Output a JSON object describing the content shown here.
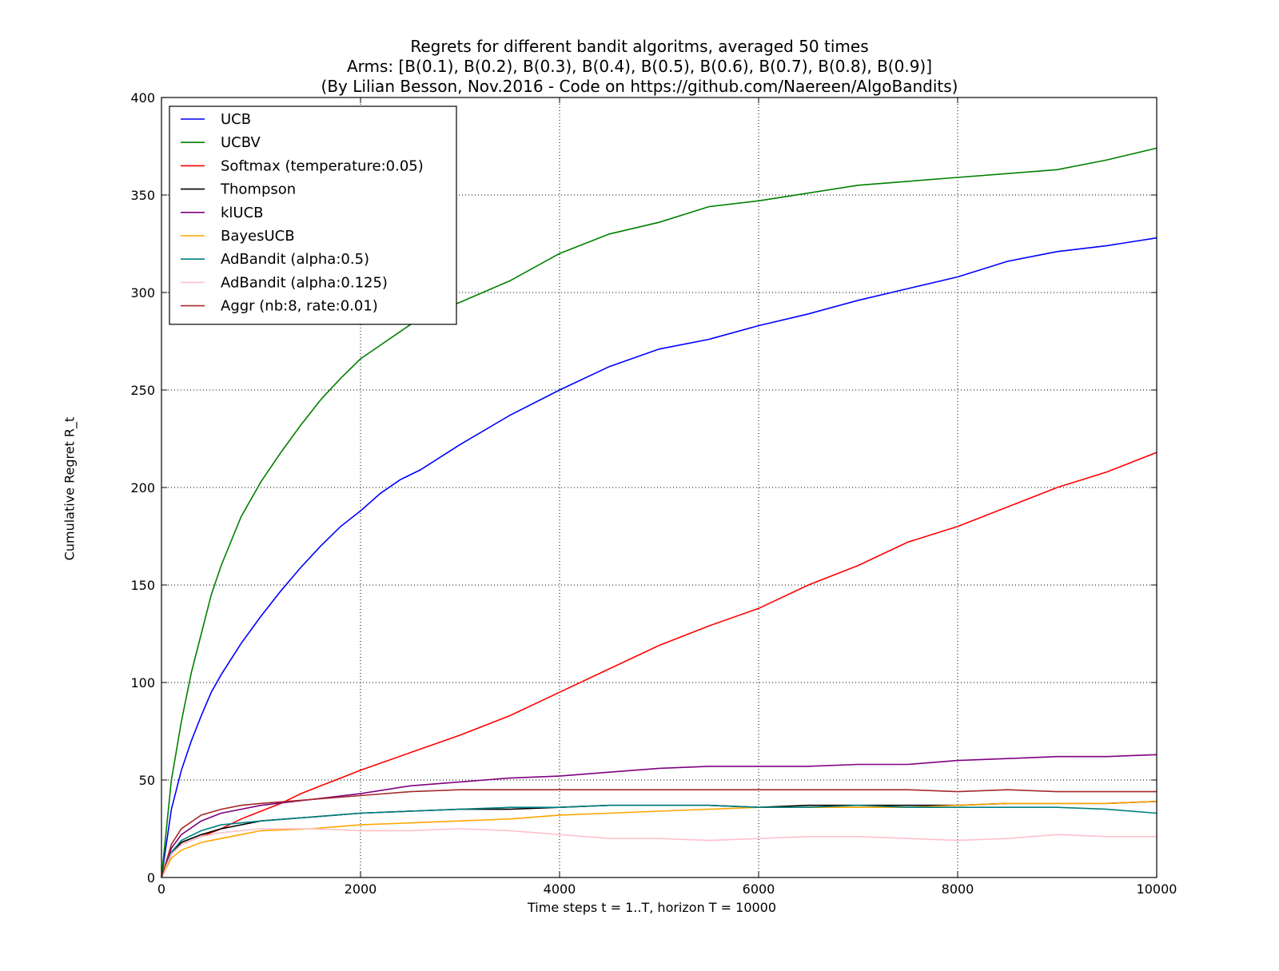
{
  "chart_data": {
    "type": "line",
    "title_lines": [
      "Regrets for different bandit algoritms, averaged 50 times",
      "Arms: [B(0.1), B(0.2), B(0.3), B(0.4), B(0.5), B(0.6), B(0.7), B(0.8), B(0.9)]",
      "(By Lilian Besson, Nov.2016 - Code on https://github.com/Naereen/AlgoBandits)"
    ],
    "xlabel": "Time steps t = 1..T, horizon T = 10000",
    "ylabel": "Cumulative Regret R_t",
    "xlim": [
      0,
      10000
    ],
    "ylim": [
      0,
      400
    ],
    "xticks": [
      0,
      2000,
      4000,
      6000,
      8000,
      10000
    ],
    "yticks": [
      0,
      50,
      100,
      150,
      200,
      250,
      300,
      350,
      400
    ],
    "grid": true,
    "legend_position": "top-left",
    "series": [
      {
        "name": "UCB",
        "color": "#0000ff",
        "x": [
          0,
          100,
          200,
          300,
          400,
          500,
          600,
          800,
          1000,
          1200,
          1400,
          1600,
          1800,
          2000,
          2200,
          2400,
          2600,
          3000,
          3500,
          4000,
          4500,
          5000,
          5500,
          6000,
          6500,
          7000,
          7500,
          8000,
          8500,
          9000,
          9500,
          10000
        ],
        "y": [
          0,
          35,
          55,
          70,
          83,
          95,
          104,
          120,
          134,
          147,
          159,
          170,
          180,
          188,
          197,
          204,
          209,
          222,
          237,
          250,
          262,
          271,
          276,
          283,
          289,
          296,
          302,
          308,
          316,
          321,
          324,
          328
        ]
      },
      {
        "name": "UCBV",
        "color": "#008000",
        "x": [
          0,
          100,
          200,
          300,
          400,
          500,
          600,
          800,
          1000,
          1200,
          1400,
          1600,
          1800,
          2000,
          2200,
          2400,
          2600,
          3000,
          3500,
          4000,
          4500,
          5000,
          5500,
          6000,
          6500,
          7000,
          7500,
          8000,
          8500,
          9000,
          9500,
          10000
        ],
        "y": [
          0,
          50,
          80,
          105,
          125,
          145,
          160,
          185,
          203,
          218,
          232,
          245,
          256,
          266,
          273,
          280,
          287,
          295,
          306,
          320,
          330,
          336,
          344,
          347,
          351,
          355,
          357,
          359,
          361,
          363,
          368,
          374
        ]
      },
      {
        "name": "Softmax (temperature:0.05)",
        "color": "#ff0000",
        "x": [
          0,
          100,
          200,
          400,
          600,
          800,
          1000,
          1200,
          1400,
          1600,
          1800,
          2000,
          2500,
          3000,
          3500,
          4000,
          4500,
          5000,
          5500,
          6000,
          6500,
          7000,
          7500,
          8000,
          8500,
          9000,
          9500,
          10000
        ],
        "y": [
          0,
          12,
          17,
          21,
          25,
          30,
          34,
          38,
          43,
          47,
          51,
          55,
          64,
          73,
          83,
          95,
          107,
          119,
          129,
          138,
          150,
          160,
          172,
          180,
          190,
          200,
          208,
          218
        ]
      },
      {
        "name": "Thompson",
        "color": "#000000",
        "x": [
          0,
          100,
          200,
          400,
          600,
          800,
          1000,
          1500,
          2000,
          2500,
          3000,
          3500,
          4000,
          4500,
          5000,
          5500,
          6000,
          6500,
          7000,
          7500,
          8000,
          8500,
          9000,
          9500,
          10000
        ],
        "y": [
          0,
          12,
          18,
          22,
          25,
          27,
          29,
          31,
          33,
          34,
          35,
          35,
          36,
          37,
          37,
          37,
          36,
          37,
          37,
          37,
          37,
          38,
          38,
          38,
          39
        ]
      },
      {
        "name": "klUCB",
        "color": "#800080",
        "x": [
          0,
          100,
          200,
          400,
          600,
          800,
          1000,
          1500,
          2000,
          2500,
          3000,
          3500,
          4000,
          4500,
          5000,
          5500,
          6000,
          6500,
          7000,
          7500,
          8000,
          8500,
          9000,
          9500,
          10000
        ],
        "y": [
          0,
          15,
          22,
          29,
          33,
          35,
          37,
          40,
          43,
          47,
          49,
          51,
          52,
          54,
          56,
          57,
          57,
          57,
          58,
          58,
          60,
          61,
          62,
          62,
          63
        ]
      },
      {
        "name": "BayesUCB",
        "color": "#ffa500",
        "x": [
          0,
          100,
          200,
          400,
          600,
          800,
          1000,
          1500,
          2000,
          2500,
          3000,
          3500,
          4000,
          4500,
          5000,
          5500,
          6000,
          6500,
          7000,
          7500,
          8000,
          8500,
          9000,
          9500,
          10000
        ],
        "y": [
          0,
          10,
          14,
          18,
          20,
          22,
          24,
          25,
          27,
          28,
          29,
          30,
          32,
          33,
          34,
          35,
          36,
          36,
          36,
          36,
          37,
          38,
          38,
          38,
          39
        ]
      },
      {
        "name": "AdBandit (alpha:0.5)",
        "color": "#008080",
        "x": [
          0,
          100,
          200,
          400,
          600,
          800,
          1000,
          1500,
          2000,
          2500,
          3000,
          3500,
          4000,
          4500,
          5000,
          5500,
          6000,
          6500,
          7000,
          7500,
          8000,
          8500,
          9000,
          9500,
          10000
        ],
        "y": [
          0,
          13,
          19,
          24,
          27,
          28,
          29,
          31,
          33,
          34,
          35,
          36,
          36,
          37,
          37,
          37,
          36,
          36,
          37,
          36,
          36,
          36,
          36,
          35,
          33
        ]
      },
      {
        "name": "AdBandit (alpha:0.125)",
        "color": "#ffc0cb",
        "x": [
          0,
          100,
          200,
          400,
          600,
          800,
          1000,
          1500,
          2000,
          2500,
          3000,
          3500,
          4000,
          4500,
          5000,
          5500,
          6000,
          6500,
          7000,
          7500,
          8000,
          8500,
          9000,
          9500,
          10000
        ],
        "y": [
          0,
          12,
          17,
          21,
          23,
          24,
          25,
          25,
          24,
          24,
          25,
          24,
          22,
          20,
          20,
          19,
          20,
          21,
          21,
          20,
          19,
          20,
          22,
          21,
          21
        ]
      },
      {
        "name": "Aggr (nb:8, rate:0.01)",
        "color": "#a52a2a",
        "x": [
          0,
          100,
          200,
          400,
          600,
          800,
          1000,
          1500,
          2000,
          2500,
          3000,
          3500,
          4000,
          4500,
          5000,
          5500,
          6000,
          6500,
          7000,
          7500,
          8000,
          8500,
          9000,
          9500,
          10000
        ],
        "y": [
          0,
          17,
          25,
          32,
          35,
          37,
          38,
          40,
          42,
          44,
          45,
          45,
          45,
          45,
          45,
          45,
          45,
          45,
          45,
          45,
          44,
          45,
          44,
          44,
          44
        ]
      }
    ]
  }
}
